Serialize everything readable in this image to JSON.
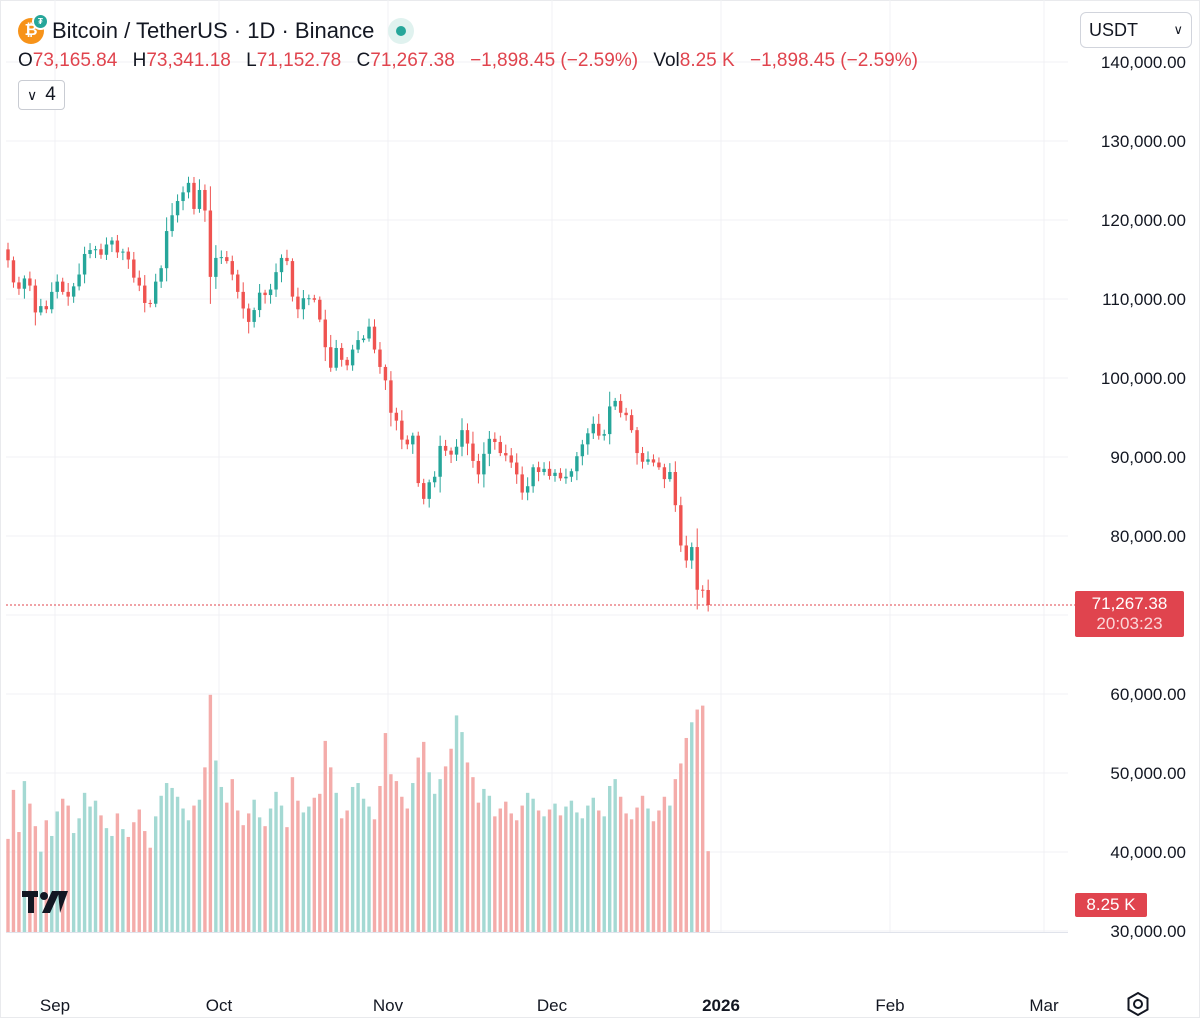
{
  "header": {
    "symbol_title": "Bitcoin / TetherUS · 1D · Binance",
    "coin_icon": "bitcoin-icon",
    "status_icon": "market-open-dot-icon",
    "ohlc": [
      {
        "label": "O",
        "value": "73,165.84"
      },
      {
        "label": "H",
        "value": "73,341.18"
      },
      {
        "label": "L",
        "value": "71,152.78"
      },
      {
        "label": "C",
        "value": "71,267.38"
      },
      {
        "label": "",
        "value": "−1,898.45 (−2.59%)"
      },
      {
        "label": "Vol",
        "value": "8.25 K"
      },
      {
        "label": "",
        "value": "−1,898.45 (−2.59%)"
      }
    ],
    "indicator_count": "4",
    "currency": "USDT"
  },
  "price_tag": {
    "price": "71,267.38",
    "countdown": "20:03:23"
  },
  "volume_tag": "8.25 K",
  "colors": {
    "up": "#26a69a",
    "down": "#ef5350",
    "up_vol": "#a4d9d3",
    "down_vol": "#f4acaa",
    "tag": "#e0444e"
  },
  "chart_data": {
    "type": "candlestick",
    "title": "Bitcoin / TetherUS · 1D · Binance",
    "y_axis": {
      "ticks": [
        "140,000.00",
        "130,000.00",
        "120,000.00",
        "110,000.00",
        "100,000.00",
        "90,000.00",
        "80,000.00",
        "60,000.00",
        "50,000.00",
        "40,000.00",
        "30,000.00"
      ],
      "range": [
        30000,
        140000
      ],
      "position": "right"
    },
    "x_axis": {
      "ticks": [
        "Sep",
        "Oct",
        "Nov",
        "Dec",
        "2026",
        "Feb",
        "Mar"
      ],
      "bold_ticks": [
        "2026"
      ],
      "start_date": "2025-08-24",
      "end_date": "2026-03-09"
    },
    "last_price": 71267.38,
    "series_daily_closes": [
      114900,
      112100,
      111300,
      112600,
      111700,
      108300,
      109100,
      108700,
      110900,
      112200,
      110900,
      110300,
      111600,
      113100,
      115700,
      116200,
      116300,
      115600,
      116900,
      117400,
      115900,
      116000,
      115000,
      112700,
      111700,
      109500,
      109400,
      112200,
      113900,
      118600,
      120600,
      122400,
      123500,
      124700,
      121400,
      123800,
      121200,
      112800,
      115200,
      115300,
      114800,
      113100,
      110900,
      108800,
      107100,
      108600,
      110800,
      110500,
      111200,
      113400,
      115200,
      114800,
      110300,
      108700,
      110100,
      110100,
      109900,
      107400,
      103900,
      101300,
      103800,
      102300,
      101600,
      103600,
      104800,
      105000,
      106500,
      103600,
      101400,
      99700,
      95600,
      94600,
      92200,
      91600,
      92700,
      86700,
      84700,
      86800,
      87500,
      91400,
      90800,
      90300,
      91300,
      93400,
      91700,
      89500,
      87800,
      90400,
      92300,
      91900,
      90500,
      90200,
      89300,
      87800,
      85500,
      86300,
      88700,
      88100,
      88500,
      87600,
      88000,
      87300,
      87500,
      88200,
      90100,
      91600,
      93000,
      94200,
      92700,
      92900,
      96400,
      97100,
      95600,
      95300,
      93400,
      90500,
      89400,
      89700,
      89300,
      88700,
      87200,
      88100,
      83900,
      78800,
      76900,
      78600,
      73200,
      73165,
      71267
    ],
    "volume_k": [
      9.5,
      14.5,
      10.2,
      15.4,
      13.1,
      10.8,
      8.2,
      11.4,
      9.8,
      12.3,
      13.6,
      12.9,
      10.1,
      11.6,
      14.2,
      12.8,
      13.4,
      11.9,
      10.6,
      9.8,
      12.1,
      10.5,
      9.7,
      11.2,
      12.5,
      10.3,
      8.6,
      11.8,
      13.9,
      15.2,
      14.7,
      13.8,
      12.6,
      11.4,
      12.9,
      13.5,
      16.8,
      24.2,
      17.5,
      14.8,
      13.2,
      15.6,
      12.4,
      10.9,
      12.1,
      13.5,
      11.7,
      10.8,
      12.6,
      14.3,
      12.9,
      10.7,
      15.8,
      13.4,
      12.2,
      12.8,
      13.7,
      14.1,
      19.5,
      16.8,
      14.2,
      11.6,
      12.4,
      14.8,
      15.2,
      13.6,
      12.8,
      11.5,
      14.9,
      20.3,
      16.1,
      15.4,
      13.8,
      12.6,
      15.2,
      17.8,
      19.4,
      16.3,
      14.1,
      15.6,
      16.9,
      18.7,
      22.1,
      20.4,
      17.3,
      15.8,
      13.2,
      14.6,
      13.9,
      11.8,
      12.6,
      13.3,
      12.1,
      11.4,
      12.9,
      14.2,
      13.6,
      12.4,
      11.8,
      12.5,
      13.1,
      11.9,
      12.8,
      13.4,
      12.2,
      11.6,
      12.9,
      13.7,
      12.4,
      11.8,
      14.9,
      15.6,
      13.8,
      12.1,
      11.5,
      12.7,
      13.9,
      12.6,
      11.3,
      12.4,
      13.8,
      12.9,
      15.6,
      17.2,
      19.8,
      21.4,
      22.7,
      23.1,
      8.25
    ]
  }
}
